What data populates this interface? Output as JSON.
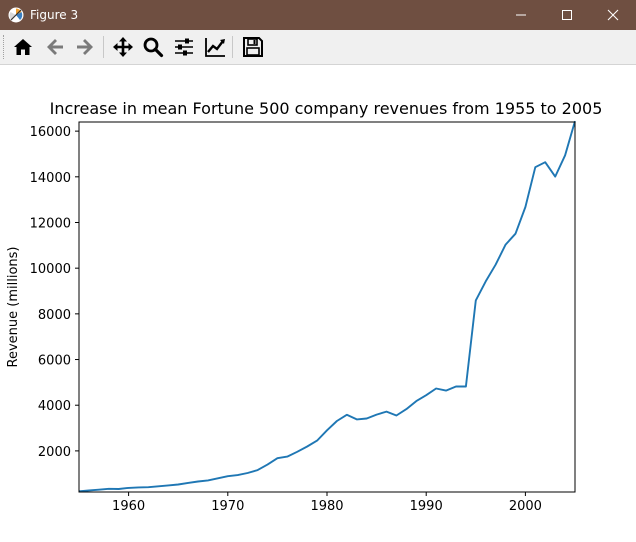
{
  "window": {
    "title": "Figure 3",
    "controls": [
      "minimize",
      "maximize",
      "close"
    ]
  },
  "toolbar": {
    "buttons": [
      {
        "name": "home",
        "icon": "home-icon"
      },
      {
        "name": "back",
        "icon": "arrow-left-icon"
      },
      {
        "name": "forward",
        "icon": "arrow-right-icon"
      },
      {
        "name": "pan",
        "icon": "move-icon"
      },
      {
        "name": "zoom",
        "icon": "magnifier-icon"
      },
      {
        "name": "configure-subplots",
        "icon": "sliders-icon"
      },
      {
        "name": "edit-axis",
        "icon": "line-chart-icon"
      },
      {
        "name": "save",
        "icon": "floppy-disk-icon"
      }
    ]
  },
  "chart_data": {
    "type": "line",
    "title": "Increase in mean Fortune 500 company revenues from 1955 to 2005",
    "xlabel": "",
    "ylabel": "Revenue (millions)",
    "xlim": [
      1955,
      2005
    ],
    "ylim": [
      200,
      16400
    ],
    "xticks": [
      1960,
      1970,
      1980,
      1990,
      2000
    ],
    "yticks": [
      2000,
      4000,
      6000,
      8000,
      10000,
      12000,
      14000,
      16000
    ],
    "grid": false,
    "color": "#1f77b4",
    "x": [
      1955,
      1956,
      1957,
      1958,
      1959,
      1960,
      1961,
      1962,
      1963,
      1964,
      1965,
      1966,
      1967,
      1968,
      1969,
      1970,
      1971,
      1972,
      1973,
      1974,
      1975,
      1976,
      1977,
      1978,
      1979,
      1980,
      1981,
      1982,
      1983,
      1984,
      1985,
      1986,
      1987,
      1988,
      1989,
      1990,
      1991,
      1992,
      1993,
      1994,
      1995,
      1996,
      1997,
      1998,
      1999,
      2000,
      2001,
      2002,
      2003,
      2004,
      2005
    ],
    "y": [
      230,
      270,
      300,
      340,
      330,
      380,
      400,
      410,
      450,
      490,
      530,
      600,
      660,
      710,
      800,
      890,
      940,
      1030,
      1160,
      1400,
      1680,
      1750,
      1960,
      2190,
      2450,
      2900,
      3310,
      3580,
      3380,
      3420,
      3590,
      3720,
      3550,
      3830,
      4180,
      4440,
      4730,
      4640,
      4820,
      4820,
      8590,
      9420,
      10150,
      11030,
      11510,
      12680,
      14420,
      14640,
      14010,
      14940,
      16440
    ]
  }
}
